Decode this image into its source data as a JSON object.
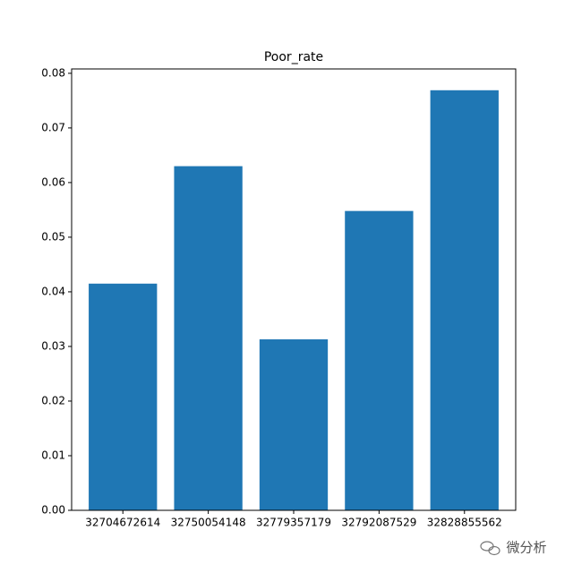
{
  "chart_data": {
    "type": "bar",
    "title": "Poor_rate",
    "categories": [
      "32704672614",
      "32750054148",
      "32779357179",
      "32792087529",
      "32828855562"
    ],
    "values": [
      0.0415,
      0.063,
      0.0313,
      0.0548,
      0.0769
    ],
    "color": "#1f77b4",
    "ylim": [
      0,
      0.0808
    ],
    "yticks": [
      {
        "value": 0,
        "label": "0.00"
      },
      {
        "value": 0.01,
        "label": "0.01"
      },
      {
        "value": 0.02,
        "label": "0.02"
      },
      {
        "value": 0.03,
        "label": "0.03"
      },
      {
        "value": 0.04,
        "label": "0.04"
      },
      {
        "value": 0.05,
        "label": "0.05"
      },
      {
        "value": 0.06,
        "label": "0.06"
      },
      {
        "value": 0.07,
        "label": "0.07"
      },
      {
        "value": 0.08,
        "label": "0.08"
      }
    ],
    "grid": false
  },
  "watermark": "微分析"
}
